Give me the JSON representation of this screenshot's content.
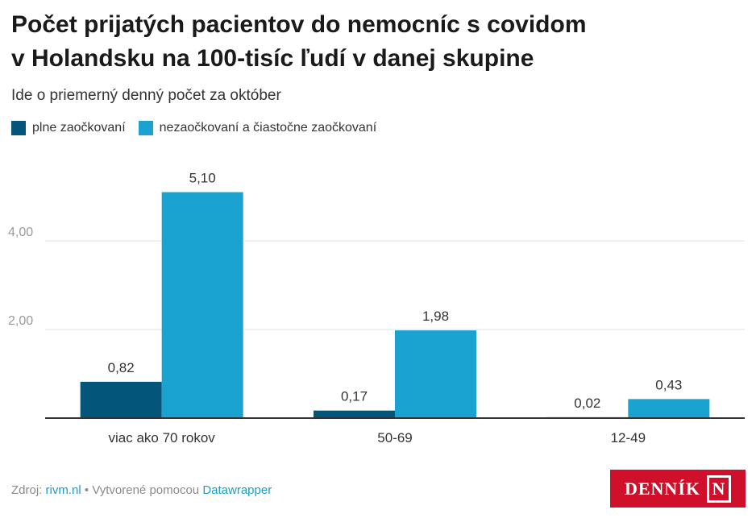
{
  "title_line1": "Počet prijatých pacientov do nemocníc s covidom",
  "title_line2": "v Holandsku na 100-tisíc ľudí v danej skupine",
  "subtitle": "Ide o priemerný denný počet za október",
  "footer": {
    "source_label": "Zdroj:",
    "source_link": "rivm.nl",
    "separator": "•",
    "made_with": "Vytvorené pomocou",
    "made_with_link": "Datawrapper"
  },
  "logo": {
    "text": "DENNÍK",
    "mark": "N"
  },
  "colors": {
    "fully": "#03567a",
    "not_fully": "#1aa3d1"
  },
  "chart_data": {
    "type": "bar",
    "categories": [
      "viac ako 70 rokov",
      "50-69",
      "12-49"
    ],
    "series": [
      {
        "name": "plne zaočkovaní",
        "values": [
          0.82,
          0.17,
          0.02
        ],
        "labels": [
          "0,82",
          "0,17",
          "0,02"
        ]
      },
      {
        "name": "nezaočkovaní a čiastočne zaočkovaní",
        "values": [
          5.1,
          1.98,
          0.43
        ],
        "labels": [
          "5,10",
          "1,98",
          "0,43"
        ]
      }
    ],
    "yticks": [
      2,
      4
    ],
    "ytick_labels": [
      "2,00",
      "4,00"
    ],
    "ylim": [
      0,
      5.5
    ],
    "grid": true,
    "legend": "top-left"
  }
}
